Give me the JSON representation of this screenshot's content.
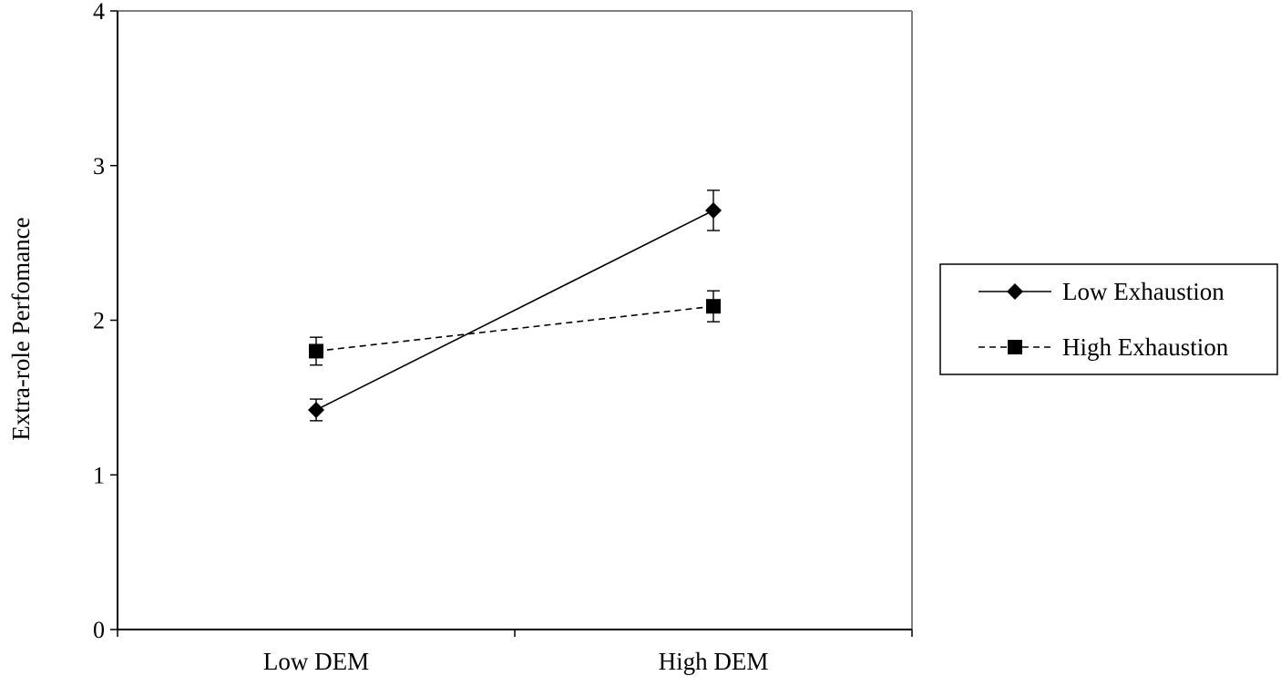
{
  "chart_data": {
    "type": "line",
    "title": "",
    "xlabel": "",
    "ylabel": "Extra-role Perfomance",
    "categories": [
      "Low DEM",
      "High DEM"
    ],
    "ylim": [
      0,
      4
    ],
    "yticks": [
      0,
      1,
      2,
      3,
      4
    ],
    "grid": false,
    "legend_position": "right",
    "series": [
      {
        "name": "Low Exhaustion",
        "values": [
          1.42,
          2.71
        ],
        "error": [
          0.07,
          0.13
        ],
        "marker": "diamond",
        "line_style": "solid",
        "color": "#000000"
      },
      {
        "name": "High Exhaustion",
        "values": [
          1.8,
          2.09
        ],
        "error": [
          0.09,
          0.1
        ],
        "marker": "square",
        "line_style": "dashed",
        "color": "#000000"
      }
    ],
    "colors": {
      "plot_border": "#808080",
      "axis": "#000000",
      "legend_border": "#000000"
    }
  }
}
